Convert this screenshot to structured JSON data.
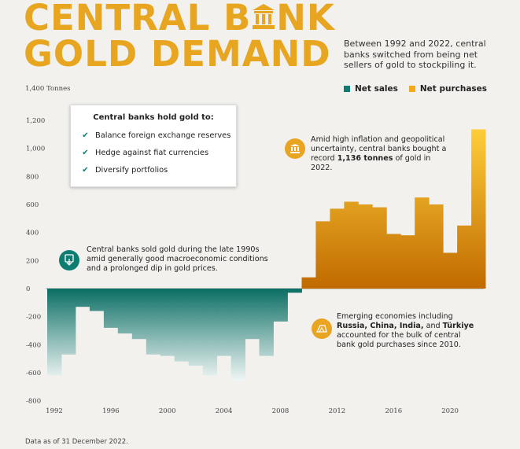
{
  "title": {
    "line1": "CENTRAL B",
    "bank_char": "A",
    "line1_end": "NK",
    "line2": "GOLD DEMAND"
  },
  "subtitle": "Between 1992 and 2022, central banks switched from being net sellers of gold to stockpiling it.",
  "units": "1,400 Tonnes",
  "legend": {
    "net_sales": "Net sales",
    "net_purchases": "Net purchases"
  },
  "colors": {
    "net_sales": "#0d7d72",
    "net_purchases": "#f2a91a",
    "title": "#e7a520"
  },
  "box": {
    "heading": "Central banks hold gold to:",
    "items": [
      "Balance foreign exchange reserves",
      "Hedge against fiat currencies",
      "Diversify portfolios"
    ]
  },
  "notes": {
    "inflation_pre": "Amid high inflation and geopolitical uncertainty, central banks bought a record ",
    "inflation_bold": "1,136 tonnes",
    "inflation_post": " of gold in 2022.",
    "sold_1990s": "Central banks sold gold during the late 1990s amid generally good macroeconomic conditions and a prolonged dip in gold prices.",
    "emerging_pre": "Emerging economies including ",
    "emerging_bold": "Russia, China, India,",
    "emerging_mid": " and ",
    "emerging_bold2": "Türkiye",
    "emerging_post": " accounted for the bulk of central bank gold purchases since 2010."
  },
  "footer": "Data as of 31 December 2022.",
  "chart_data": {
    "type": "bar",
    "x": [
      1992,
      1993,
      1994,
      1995,
      1996,
      1997,
      1998,
      1999,
      2000,
      2001,
      2002,
      2003,
      2004,
      2005,
      2006,
      2007,
      2008,
      2009,
      2010,
      2011,
      2012,
      2013,
      2014,
      2015,
      2016,
      2017,
      2018,
      2019,
      2020,
      2021,
      2022
    ],
    "values": [
      -620,
      -470,
      -130,
      -160,
      -280,
      -320,
      -360,
      -470,
      -480,
      -520,
      -550,
      -620,
      -480,
      -660,
      -360,
      -480,
      -235,
      -30,
      80,
      480,
      570,
      620,
      600,
      580,
      390,
      380,
      650,
      600,
      255,
      450,
      1136
    ],
    "ylim": [
      -800,
      1400
    ],
    "yticks": [
      -800,
      -600,
      -400,
      -200,
      0,
      200,
      400,
      600,
      800,
      "1,000",
      "1,200"
    ],
    "xticks": [
      1992,
      1996,
      2000,
      2004,
      2008,
      2012,
      2016,
      2020
    ],
    "grid": false
  }
}
